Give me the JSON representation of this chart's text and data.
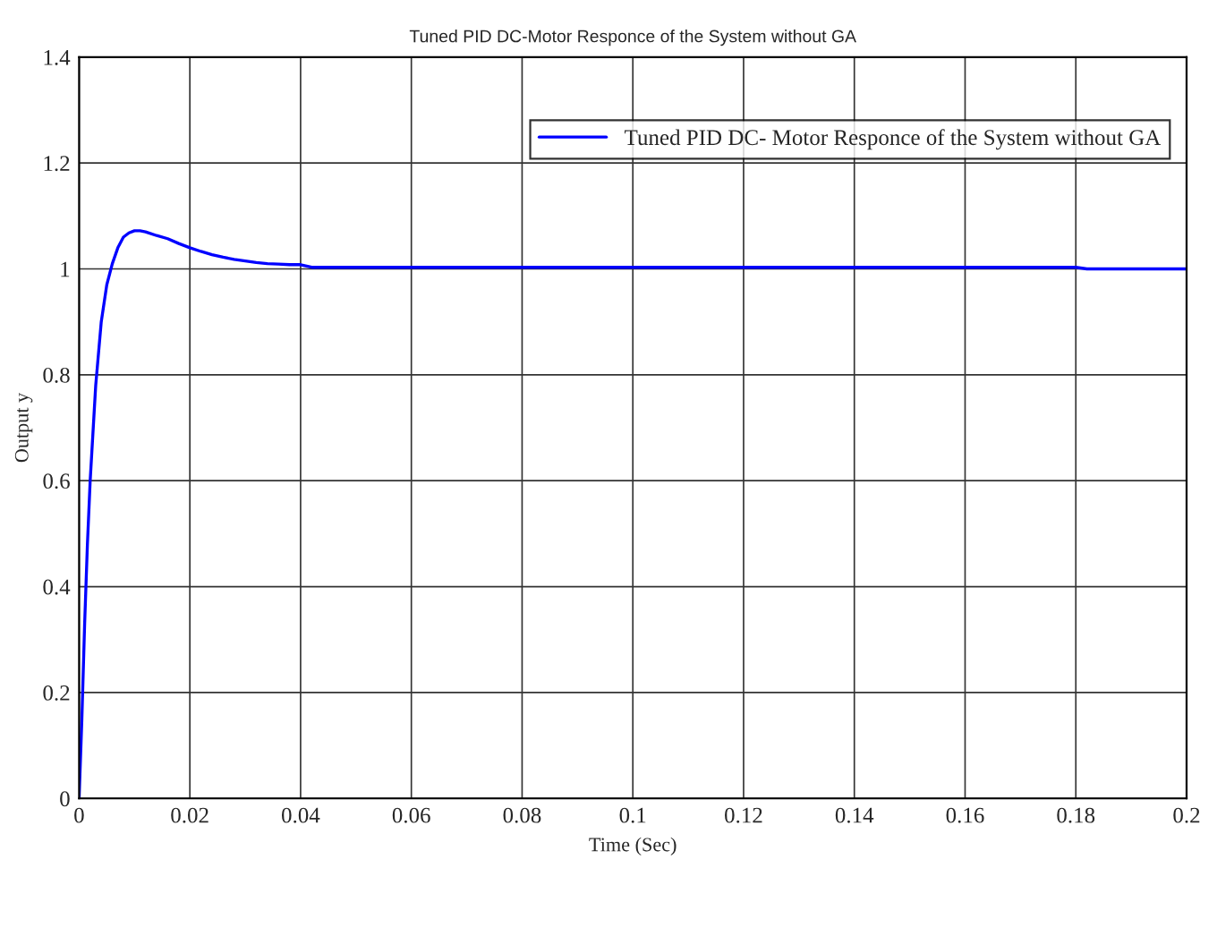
{
  "chart_data": {
    "type": "line",
    "title": "Tuned PID DC-Motor Responce of the System without GA",
    "xlabel": "Time (Sec)",
    "ylabel": "Output y",
    "series": [
      {
        "name": "Tuned PID DC- Motor Responce of the System without GA",
        "color": "#0000ff",
        "x": [
          0,
          0.0005,
          0.001,
          0.0015,
          0.002,
          0.003,
          0.004,
          0.005,
          0.006,
          0.007,
          0.008,
          0.009,
          0.01,
          0.011,
          0.012,
          0.014,
          0.016,
          0.018,
          0.02,
          0.022,
          0.024,
          0.026,
          0.028,
          0.03,
          0.032,
          0.034,
          0.036,
          0.038,
          0.04,
          0.042,
          0.06,
          0.1,
          0.14,
          0.18,
          0.182,
          0.2
        ],
        "values": [
          0,
          0.15,
          0.33,
          0.48,
          0.6,
          0.78,
          0.9,
          0.97,
          1.01,
          1.04,
          1.06,
          1.068,
          1.072,
          1.072,
          1.07,
          1.063,
          1.057,
          1.048,
          1.04,
          1.033,
          1.027,
          1.022,
          1.018,
          1.015,
          1.012,
          1.01,
          1.009,
          1.008,
          1.008,
          1.003,
          1.003,
          1.003,
          1.003,
          1.003,
          1.0,
          1.0
        ]
      }
    ],
    "xlim": [
      0,
      0.2
    ],
    "ylim": [
      0,
      1.4
    ],
    "xticks": [
      0,
      0.02,
      0.04,
      0.06,
      0.08,
      0.1,
      0.12,
      0.14,
      0.16,
      0.18,
      0.2
    ],
    "yticks": [
      0,
      0.2,
      0.4,
      0.6,
      0.8,
      1,
      1.2,
      1.4
    ],
    "grid": true,
    "legend": "top right",
    "marker": "none",
    "line_style": "solid"
  }
}
